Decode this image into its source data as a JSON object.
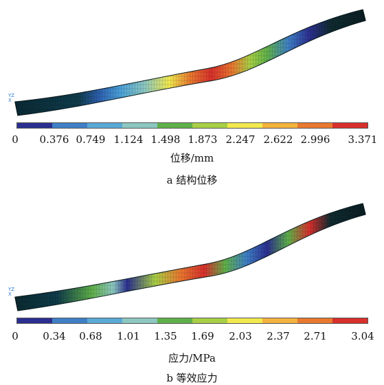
{
  "panels": [
    {
      "id": "a",
      "caption": "a  结构位移",
      "unit_label": "位移/mm",
      "tick_labels": [
        "0",
        "0.376",
        "0.749",
        "1.124",
        "1.498",
        "1.873",
        "2.247",
        "2.622",
        "2.996",
        "3.371"
      ],
      "axis_glyphs": [
        "Y",
        "Z",
        "X"
      ]
    },
    {
      "id": "b",
      "caption": "b  等效应力",
      "unit_label": "应力/MPa",
      "tick_labels": [
        "0",
        "0.34",
        "0.68",
        "1.01",
        "1.35",
        "1.69",
        "2.03",
        "2.37",
        "2.71",
        "3.04"
      ],
      "axis_glyphs": [
        "Y",
        "Z",
        "X"
      ]
    }
  ],
  "colorbar_colors": [
    "#2b2f8f",
    "#3f7fc6",
    "#5aa9d6",
    "#8cc7c0",
    "#5fb04a",
    "#a8cf45",
    "#f2e94e",
    "#f4b23e",
    "#e8792f",
    "#d8302c"
  ]
}
